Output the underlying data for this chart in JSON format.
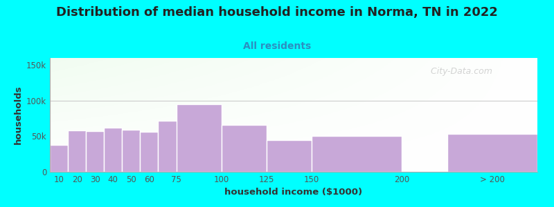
{
  "title": "Distribution of median household income in Norma, TN in 2022",
  "subtitle": "All residents",
  "xlabel": "household income ($1000)",
  "ylabel": "households",
  "title_fontsize": 13,
  "subtitle_fontsize": 10,
  "label_fontsize": 9.5,
  "tick_fontsize": 8.5,
  "background_outer": "#00FFFF",
  "bar_color": "#C8A8D8",
  "bar_edge_color": "#FFFFFF",
  "values": [
    38000,
    58000,
    57000,
    62000,
    59000,
    56000,
    72000,
    95000,
    66000,
    45000,
    50000,
    53000
  ],
  "ylim": [
    0,
    160000
  ],
  "yticks": [
    0,
    50000,
    100000,
    150000
  ],
  "yticklabels": [
    "0",
    "50k",
    "100k",
    "150k"
  ],
  "bar_widths": [
    10,
    10,
    10,
    10,
    10,
    10,
    15,
    25,
    25,
    25,
    50,
    50
  ],
  "bar_lefts": [
    5,
    15,
    25,
    35,
    45,
    55,
    65,
    75,
    100,
    125,
    150,
    225
  ],
  "xlim": [
    5,
    275
  ],
  "xtick_positions": [
    10,
    20,
    30,
    40,
    50,
    60,
    75,
    100,
    125,
    150,
    200,
    250
  ],
  "xtick_labels": [
    "10",
    "20",
    "30",
    "40",
    "50",
    "60",
    "75",
    "100",
    "125",
    "150",
    "200",
    "> 200"
  ],
  "watermark": "  City-Data.com",
  "title_color": "#222222",
  "subtitle_color": "#2B8FC0",
  "axis_label_color": "#333333",
  "tick_color": "#555555",
  "hline_color": "#CCCCCC",
  "watermark_color": "#AAAAAA",
  "watermark_alpha": 0.5,
  "spine_color": "#AAAAAA"
}
